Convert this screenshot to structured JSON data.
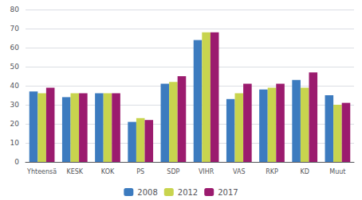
{
  "chart_data": {
    "type": "bar",
    "categories": [
      "Yhteensä",
      "KESK",
      "KOK",
      "PS",
      "SDP",
      "VIHR",
      "VAS",
      "RKP",
      "KD",
      "Muut"
    ],
    "series": [
      {
        "name": "2008",
        "color": "#3c7bbf",
        "values": [
          37,
          34,
          36,
          21,
          41,
          64,
          33,
          38,
          43,
          35
        ]
      },
      {
        "name": "2012",
        "color": "#c8d44e",
        "values": [
          36,
          36,
          36,
          23,
          42,
          68,
          36,
          39,
          39,
          30
        ]
      },
      {
        "name": "2017",
        "color": "#9b1b6e",
        "values": [
          39,
          36,
          36,
          22,
          45,
          68,
          41,
          41,
          47,
          31
        ]
      }
    ],
    "ylim": [
      0,
      80
    ],
    "yticks": [
      0,
      10,
      20,
      30,
      40,
      50,
      60,
      70,
      80
    ],
    "grid": true,
    "legend": "bottom"
  }
}
